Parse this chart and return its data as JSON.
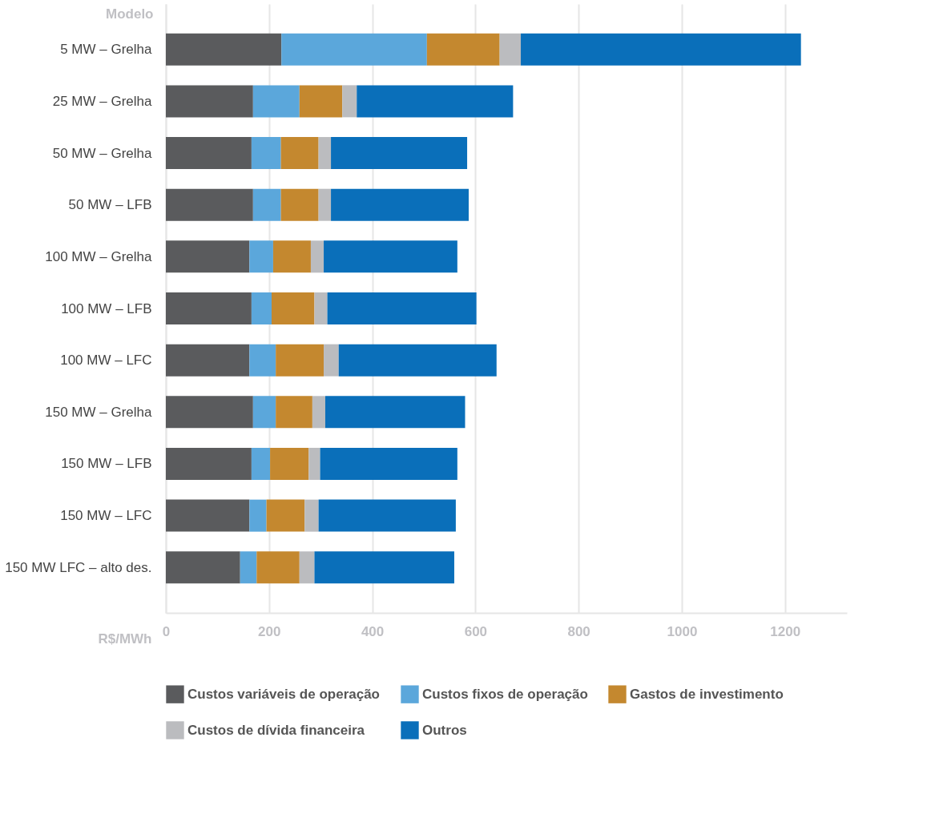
{
  "chart_data": {
    "type": "bar",
    "orientation": "horizontal",
    "stacked": true,
    "ylabel": "Modelo",
    "xlabel": "R$/MWh",
    "categories": [
      "5 MW – Grelha",
      "25 MW – Grelha",
      "50 MW – Grelha",
      "50 MW – LFB",
      "100 MW – Grelha",
      "100 MW – LFB",
      "100 MW – LFC",
      "150 MW – Grelha",
      "150 MW – LFB",
      "150 MW – LFC",
      "150 MW LFC – alto des."
    ],
    "series": [
      {
        "name": "Custos variáveis de operação",
        "color": "#5a5b5d",
        "values": [
          224,
          169,
          166,
          169,
          162,
          166,
          162,
          169,
          166,
          162,
          144
        ]
      },
      {
        "name": "Custos fixos de operação",
        "color": "#5ba7db",
        "values": [
          282,
          90,
          57,
          54,
          46,
          39,
          51,
          44,
          36,
          33,
          32
        ]
      },
      {
        "name": "Gastos de investimento",
        "color": "#c4882f",
        "values": [
          141,
          83,
          73,
          73,
          73,
          83,
          93,
          71,
          75,
          74,
          83
        ]
      },
      {
        "name": "Custos de dívida financeira",
        "color": "#bbbcbf",
        "values": [
          41,
          28,
          24,
          24,
          25,
          25,
          29,
          25,
          22,
          27,
          29
        ]
      },
      {
        "name": "Outros",
        "color": "#0a6fba",
        "values": [
          543,
          303,
          264,
          267,
          259,
          289,
          306,
          271,
          266,
          266,
          271
        ]
      }
    ],
    "xlim": [
      0,
      1320
    ],
    "xticks": [
      0,
      200,
      400,
      600,
      800,
      1000,
      1200
    ],
    "grid": "x",
    "legend": "bottom"
  }
}
